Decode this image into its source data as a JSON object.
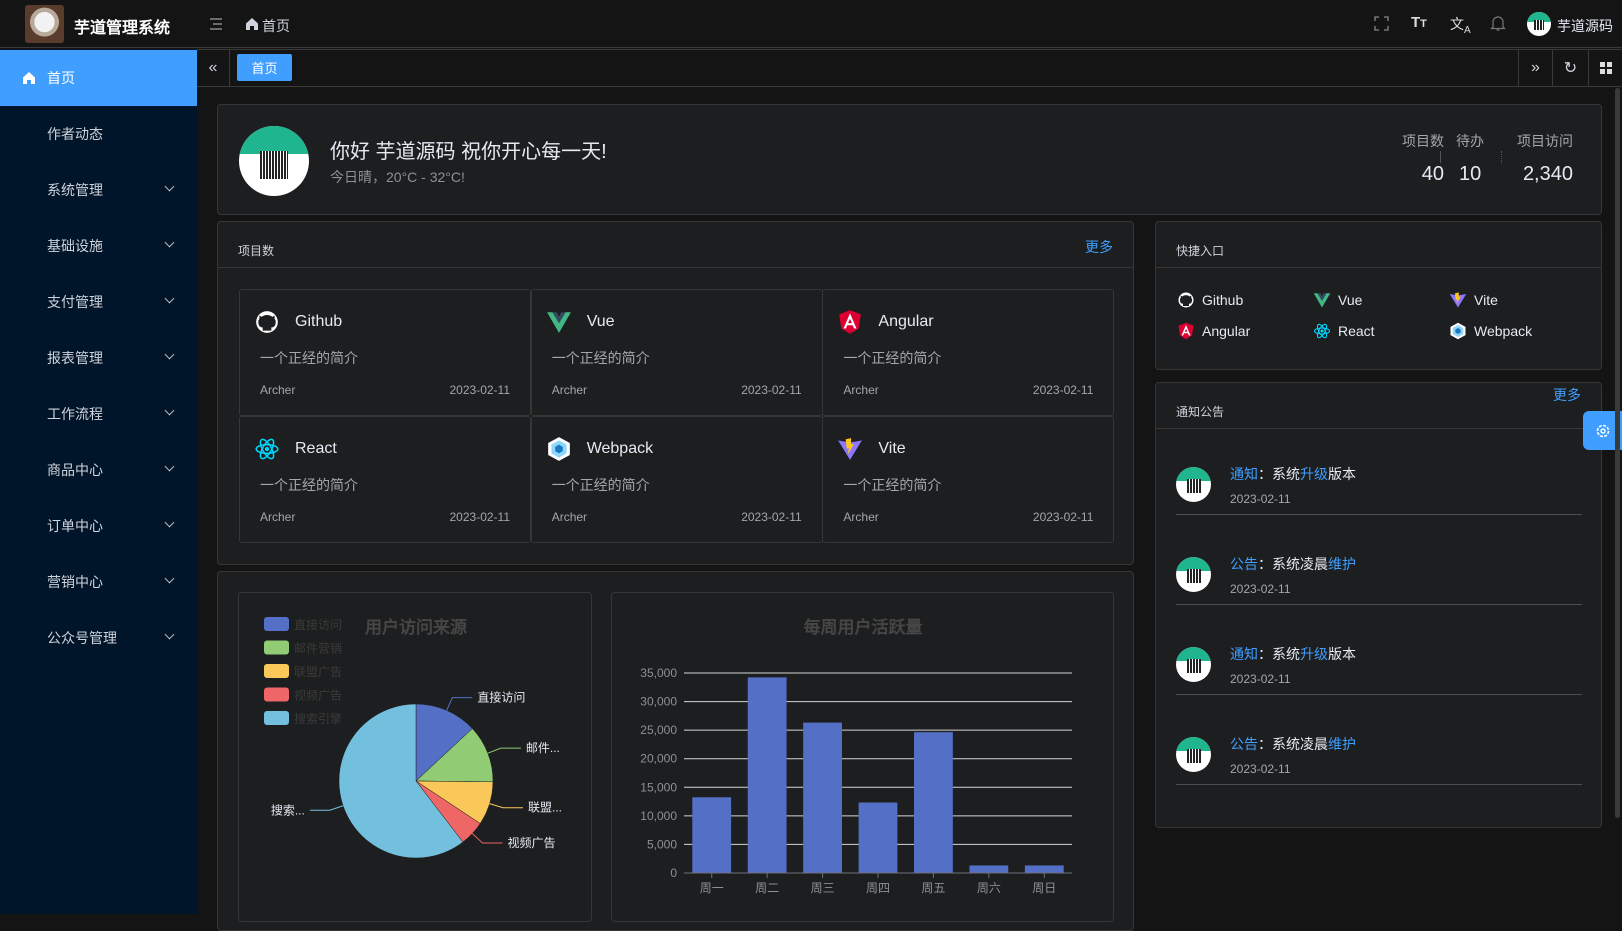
{
  "header": {
    "app_title": "芋道管理系统",
    "breadcrumb": "首页",
    "user_name": "芋道源码"
  },
  "sidebar": {
    "items": [
      {
        "label": "首页",
        "icon": "home-icon",
        "active": true,
        "expandable": false
      },
      {
        "label": "作者动态",
        "expandable": false
      },
      {
        "label": "系统管理",
        "expandable": true
      },
      {
        "label": "基础设施",
        "expandable": true
      },
      {
        "label": "支付管理",
        "expandable": true
      },
      {
        "label": "报表管理",
        "expandable": true
      },
      {
        "label": "工作流程",
        "expandable": true
      },
      {
        "label": "商品中心",
        "expandable": true
      },
      {
        "label": "订单中心",
        "expandable": true
      },
      {
        "label": "营销中心",
        "expandable": true
      },
      {
        "label": "公众号管理",
        "expandable": true
      }
    ]
  },
  "tabs": [
    {
      "label": "首页",
      "active": true
    }
  ],
  "welcome": {
    "greeting": "你好 芋道源码 祝你开心每一天!",
    "weather": "今日晴，20°C - 32°C!",
    "stats": [
      {
        "label": "项目数",
        "value": "40"
      },
      {
        "label": "待办",
        "value": "10"
      },
      {
        "label": "项目访问",
        "value": "2,340"
      }
    ]
  },
  "projects": {
    "title": "项目数",
    "more": "更多",
    "items": [
      {
        "name": "Github",
        "icon": "github-icon",
        "desc": "一个正经的简介",
        "author": "Archer",
        "date": "2023-02-11"
      },
      {
        "name": "Vue",
        "icon": "vue-icon",
        "desc": "一个正经的简介",
        "author": "Archer",
        "date": "2023-02-11"
      },
      {
        "name": "Angular",
        "icon": "angular-icon",
        "desc": "一个正经的简介",
        "author": "Archer",
        "date": "2023-02-11"
      },
      {
        "name": "React",
        "icon": "react-icon",
        "desc": "一个正经的简介",
        "author": "Archer",
        "date": "2023-02-11"
      },
      {
        "name": "Webpack",
        "icon": "webpack-icon",
        "desc": "一个正经的简介",
        "author": "Archer",
        "date": "2023-02-11"
      },
      {
        "name": "Vite",
        "icon": "vite-icon",
        "desc": "一个正经的简介",
        "author": "Archer",
        "date": "2023-02-11"
      }
    ]
  },
  "shortcuts": {
    "title": "快捷入口",
    "items": [
      {
        "name": "Github",
        "icon": "github-icon"
      },
      {
        "name": "Vue",
        "icon": "vue-icon"
      },
      {
        "name": "Vite",
        "icon": "vite-icon"
      },
      {
        "name": "Angular",
        "icon": "angular-icon"
      },
      {
        "name": "React",
        "icon": "react-icon"
      },
      {
        "name": "Webpack",
        "icon": "webpack-icon"
      }
    ]
  },
  "notices": {
    "title": "通知公告",
    "more": "更多",
    "items": [
      {
        "type": "通知",
        "sep": "：",
        "parts": [
          [
            "系统",
            false
          ],
          [
            "升级",
            true
          ],
          [
            "版本",
            false
          ]
        ],
        "date": "2023-02-11"
      },
      {
        "type": "公告",
        "sep": "：",
        "parts": [
          [
            "系统凌晨",
            false
          ],
          [
            "维护",
            true
          ]
        ],
        "date": "2023-02-11"
      },
      {
        "type": "通知",
        "sep": "：",
        "parts": [
          [
            "系统",
            false
          ],
          [
            "升级",
            true
          ],
          [
            "版本",
            false
          ]
        ],
        "date": "2023-02-11"
      },
      {
        "type": "公告",
        "sep": "：",
        "parts": [
          [
            "系统凌晨",
            false
          ],
          [
            "维护",
            true
          ]
        ],
        "date": "2023-02-11"
      }
    ]
  },
  "colors": {
    "accent": "#409eff",
    "sidebar_bg": "#001529",
    "card_bg": "#1d1e1f"
  },
  "chart_data": [
    {
      "type": "pie",
      "title": "用户访问来源",
      "legend_position": "top-left",
      "categories": [
        "直接访问",
        "邮件营销",
        "联盟广告",
        "视频广告",
        "搜索引擎"
      ],
      "values": [
        335,
        310,
        234,
        135,
        1548
      ],
      "labels": [
        "直接访问",
        "邮件...",
        "联盟...",
        "视频广告",
        "搜索..."
      ],
      "colors": [
        "#5470c6",
        "#91cc75",
        "#fac858",
        "#ee6666",
        "#73c0de"
      ]
    },
    {
      "type": "bar",
      "title": "每周用户活跃量",
      "categories": [
        "周一",
        "周二",
        "周三",
        "周四",
        "周五",
        "周六",
        "周日"
      ],
      "values": [
        13253,
        34235,
        26321,
        12340,
        24643,
        1322,
        1324
      ],
      "ylim": [
        0,
        35000
      ],
      "yticks": [
        "0",
        "5,000",
        "10,000",
        "15,000",
        "20,000",
        "25,000",
        "30,000",
        "35,000"
      ],
      "grid": true,
      "color": "#5470c6"
    }
  ]
}
